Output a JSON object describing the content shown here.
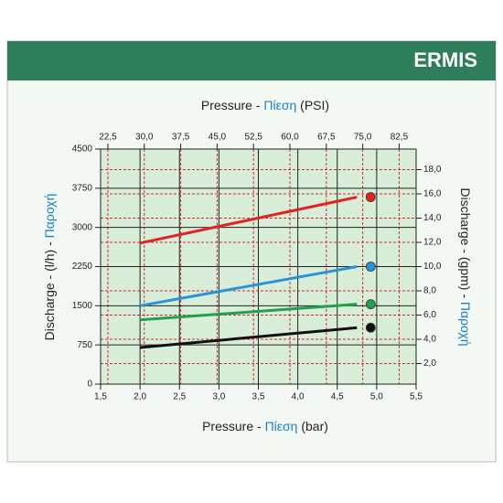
{
  "header": {
    "brand": "ERMIS"
  },
  "chart_data": {
    "type": "line",
    "x_label": {
      "text": "Pressure -",
      "greek": "Πίεση",
      "unit": "(bar)"
    },
    "x2_label": {
      "text": "Pressure -",
      "greek": "Πίεση",
      "unit": "(PSI)"
    },
    "y_label": {
      "text": "Discharge - (l/h) -",
      "greek": "Παροχή"
    },
    "y2_label": {
      "text": "Discharge - (gpm) -",
      "greek": "Παροχή"
    },
    "x": [
      2.0,
      4.75
    ],
    "series": [
      {
        "color": "#e02323",
        "values": [
          2700,
          3580
        ]
      },
      {
        "color": "#2a92d6",
        "values": [
          1500,
          2250
        ]
      },
      {
        "color": "#22a04c",
        "values": [
          1230,
          1530
        ]
      },
      {
        "color": "#111111",
        "values": [
          700,
          1080
        ]
      }
    ],
    "xlim": [
      1.5,
      5.5
    ],
    "xticks": [
      {
        "value": 1.5,
        "label": "1,5"
      },
      {
        "value": 2.0,
        "label": "2,0"
      },
      {
        "value": 2.5,
        "label": "2,5"
      },
      {
        "value": 3.0,
        "label": "3,0"
      },
      {
        "value": 3.5,
        "label": "3,5"
      },
      {
        "value": 4.0,
        "label": "4,0"
      },
      {
        "value": 4.5,
        "label": "4,5"
      },
      {
        "value": 5.0,
        "label": "5,0"
      },
      {
        "value": 5.5,
        "label": "5,5"
      }
    ],
    "x2lim": [
      21,
      86
    ],
    "x2ticks": [
      {
        "value": 22.5,
        "label": "22,5"
      },
      {
        "value": 30.0,
        "label": "30,0"
      },
      {
        "value": 37.5,
        "label": "37,5"
      },
      {
        "value": 45.0,
        "label": "45,0"
      },
      {
        "value": 52.5,
        "label": "52,5"
      },
      {
        "value": 60.0,
        "label": "60,0"
      },
      {
        "value": 67.5,
        "label": "67,5"
      },
      {
        "value": 75.0,
        "label": "75,0"
      },
      {
        "value": 82.5,
        "label": "82,5"
      }
    ],
    "ylim": [
      0,
      4500
    ],
    "yticks": [
      0,
      750,
      1500,
      2250,
      3000,
      3750,
      4500
    ],
    "y2lim": [
      0.3,
      19.7
    ],
    "y2ticks": [
      {
        "value": 2.0,
        "label": "2,0"
      },
      {
        "value": 4.0,
        "label": "4,0"
      },
      {
        "value": 6.0,
        "label": "6,0"
      },
      {
        "value": 8.0,
        "label": "8,0"
      },
      {
        "value": 10.0,
        "label": "10,0"
      },
      {
        "value": 12.0,
        "label": "12,0"
      },
      {
        "value": 14.0,
        "label": "14,0"
      },
      {
        "value": 16.0,
        "label": "16,0"
      },
      {
        "value": 18.0,
        "label": "18,0"
      }
    ],
    "grid": true
  }
}
